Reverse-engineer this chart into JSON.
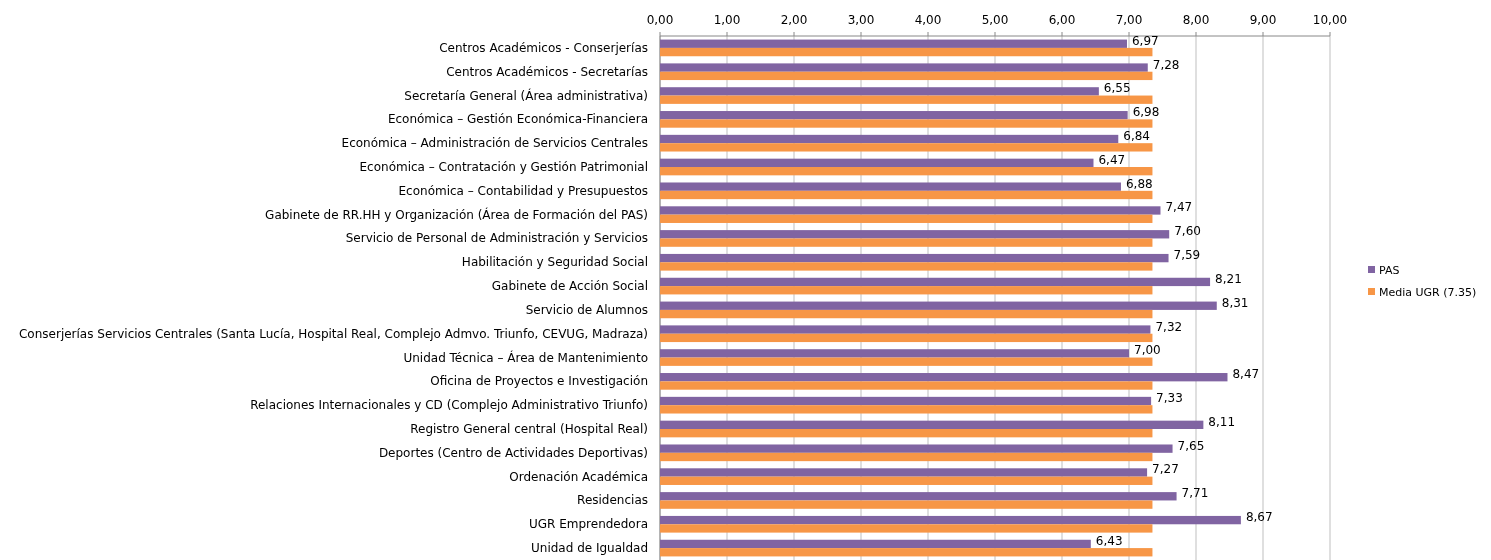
{
  "chart_data": {
    "type": "bar",
    "orientation": "horizontal",
    "categories": [
      "Centros Académicos - Conserjerías",
      "Centros Académicos - Secretarías",
      "Secretaría General (Área administrativa)",
      "Económica – Gestión Económica-Financiera",
      "Económica – Administración de Servicios Centrales",
      "Económica – Contratación y Gestión Patrimonial",
      "Económica – Contabilidad y Presupuestos",
      "Gabinete de RR.HH y Organización (Área de Formación del PAS)",
      "Servicio de Personal de Administración y Servicios",
      "Habilitación y Seguridad Social",
      "Gabinete de Acción Social",
      "Servicio de Alumnos",
      "Conserjerías Servicios Centrales (Santa Lucía, Hospital Real, Complejo Admvo. Triunfo, CEVUG, Madraza)",
      "Unidad Técnica – Área de Mantenimiento",
      "Oficina de Proyectos e Investigación",
      "Relaciones Internacionales y CD (Complejo Administrativo Triunfo)",
      "Registro General central (Hospital Real)",
      "Deportes (Centro de Actividades Deportivas)",
      "Ordenación Académica",
      "Residencias",
      "UGR Emprendedora",
      "Unidad de Igualdad"
    ],
    "series": [
      {
        "name": "PAS",
        "color": "#8064a2",
        "values": [
          6.97,
          7.28,
          6.55,
          6.98,
          6.84,
          6.47,
          6.88,
          7.47,
          7.6,
          7.59,
          8.21,
          8.31,
          7.32,
          7.0,
          8.47,
          7.33,
          8.11,
          7.65,
          7.27,
          7.71,
          8.67,
          6.43
        ],
        "value_labels": [
          "6,97",
          "7,28",
          "6,55",
          "6,98",
          "6,84",
          "6,47",
          "6,88",
          "7,47",
          "7,60",
          "7,59",
          "8,21",
          "8,31",
          "7,32",
          "7,00",
          "8,47",
          "7,33",
          "8,11",
          "7,65",
          "7,27",
          "7,71",
          "8,67",
          "6,43"
        ]
      },
      {
        "name": "Media UGR (7.35)",
        "color": "#f79646",
        "values": [
          7.35,
          7.35,
          7.35,
          7.35,
          7.35,
          7.35,
          7.35,
          7.35,
          7.35,
          7.35,
          7.35,
          7.35,
          7.35,
          7.35,
          7.35,
          7.35,
          7.35,
          7.35,
          7.35,
          7.35,
          7.35,
          7.35
        ]
      }
    ],
    "xlim": [
      0,
      10
    ],
    "xticks": [
      {
        "value": 0,
        "label": "0,00"
      },
      {
        "value": 1,
        "label": "1,00"
      },
      {
        "value": 2,
        "label": "2,00"
      },
      {
        "value": 3,
        "label": "3,00"
      },
      {
        "value": 4,
        "label": "4,00"
      },
      {
        "value": 5,
        "label": "5,00"
      },
      {
        "value": 6,
        "label": "6,00"
      },
      {
        "value": 7,
        "label": "7,00"
      },
      {
        "value": 8,
        "label": "8,00"
      },
      {
        "value": 9,
        "label": "9,00"
      },
      {
        "value": 10,
        "label": "10,00"
      }
    ],
    "grid": "x",
    "legend": "right"
  }
}
